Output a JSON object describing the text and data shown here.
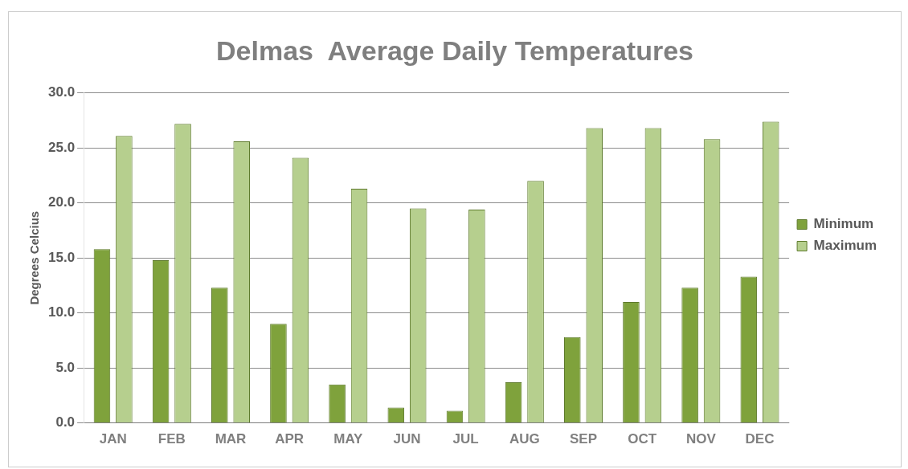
{
  "chart_data": {
    "type": "bar",
    "title": "Delmas  Average Daily Temperatures",
    "ylabel": "Degrees Celcius",
    "categories": [
      "JAN",
      "FEB",
      "MAR",
      "APR",
      "MAY",
      "JUN",
      "JUL",
      "AUG",
      "SEP",
      "OCT",
      "NOV",
      "DEC"
    ],
    "series": [
      {
        "name": "Minimum",
        "color": "#7fa23c",
        "values": [
          15.8,
          14.8,
          12.3,
          9.0,
          3.5,
          1.4,
          1.1,
          3.7,
          7.8,
          11.0,
          12.3,
          13.3
        ]
      },
      {
        "name": "Maximum",
        "color": "#b6cf8e",
        "values": [
          26.1,
          27.2,
          25.6,
          24.1,
          21.3,
          19.5,
          19.4,
          22.0,
          26.8,
          26.8,
          25.8,
          27.4
        ]
      }
    ],
    "ylim": [
      0,
      30
    ],
    "yticks": [
      {
        "value": 0,
        "label": "0.0"
      },
      {
        "value": 5,
        "label": "5.0"
      },
      {
        "value": 10,
        "label": "10.0"
      },
      {
        "value": 15,
        "label": "15.0"
      },
      {
        "value": 20,
        "label": "20.0"
      },
      {
        "value": 25,
        "label": "25.0"
      },
      {
        "value": 30,
        "label": "30.0"
      }
    ],
    "grid": "y",
    "legend": "right"
  }
}
